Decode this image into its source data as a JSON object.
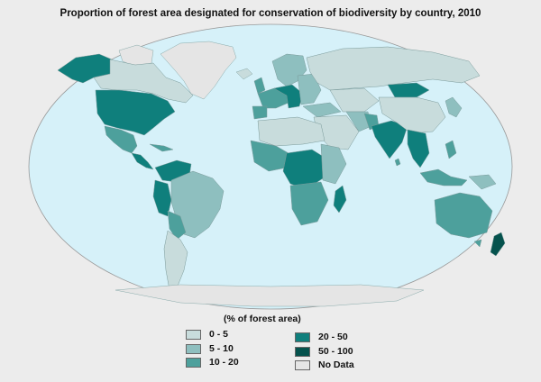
{
  "title": "Proportion of forest area designated for conservation of biodiversity by country, 2010",
  "legend": {
    "title": "(% of forest area)",
    "items": [
      {
        "label": "0 - 5",
        "color": "#c8dcdc"
      },
      {
        "label": "5 - 10",
        "color": "#8ebfbf"
      },
      {
        "label": "10 - 20",
        "color": "#4da09c"
      },
      {
        "label": "20 - 50",
        "color": "#0f7f7c"
      },
      {
        "label": "50 - 100",
        "color": "#05524d"
      },
      {
        "label": "No Data",
        "color": "#e5e5e5"
      }
    ]
  },
  "colors": {
    "ocean": "#d6f1f9",
    "background": "#ececec",
    "border": "#7a9a9a"
  }
}
